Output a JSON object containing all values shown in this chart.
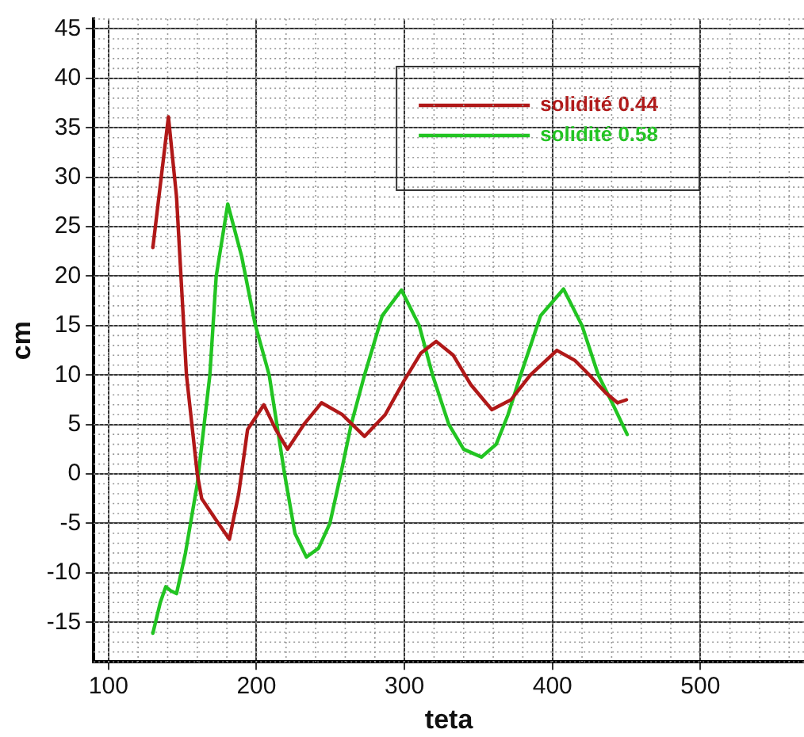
{
  "chart_data": {
    "type": "line",
    "xlabel": "teta",
    "ylabel": "cm",
    "xlim": [
      90,
      570
    ],
    "xticks": [
      100,
      200,
      300,
      400,
      500
    ],
    "ylim": [
      -19,
      46
    ],
    "yticks": [
      -15,
      -10,
      -5,
      0,
      5,
      10,
      15,
      20,
      25,
      30,
      35,
      40,
      45
    ],
    "grid": true,
    "legend": "top right",
    "marker": "none",
    "line_style": "solid",
    "series": [
      {
        "name": "solidité 0.44",
        "color": "#b01818",
        "x": [
          130,
          140.5,
          146,
          152.7,
          160,
          163,
          172,
          181.7,
          188,
          194,
          205,
          213,
          221,
          232,
          244,
          258,
          273,
          287,
          300,
          311,
          321.5,
          333,
          345,
          359,
          372,
          385,
          403,
          415,
          425,
          436,
          444,
          450
        ],
        "values": [
          22.9,
          36.1,
          28,
          10,
          0,
          -2.5,
          -4.5,
          -6.6,
          -2,
          4.5,
          7,
          4.5,
          2.5,
          5,
          7.2,
          6,
          3.8,
          6,
          9.5,
          12.2,
          13.4,
          12,
          9,
          6.5,
          7.5,
          10,
          12.5,
          11.5,
          10,
          8.2,
          7.2,
          7.5
        ]
      },
      {
        "name": "solidité 0.58",
        "color": "#22c422",
        "x": [
          130,
          135,
          138.7,
          142,
          146,
          152,
          160,
          168.5,
          172.8,
          180.6,
          190,
          199,
          208.6,
          219,
          226,
          233.7,
          242,
          249.6,
          257,
          264,
          273,
          285,
          298,
          310,
          319,
          330,
          340,
          352,
          362,
          370,
          378.5,
          392,
          407.5,
          420,
          431,
          441,
          450.5
        ],
        "values": [
          -16.1,
          -13,
          -11.4,
          -11.8,
          -12.1,
          -8,
          -1,
          10,
          20,
          27.3,
          22,
          15.2,
          10,
          0,
          -6,
          -8.4,
          -7.5,
          -5,
          0,
          5,
          10,
          16,
          18.6,
          15,
          10,
          5,
          2.5,
          1.7,
          3,
          6,
          10,
          16,
          18.7,
          15,
          10,
          7,
          4
        ]
      }
    ]
  }
}
